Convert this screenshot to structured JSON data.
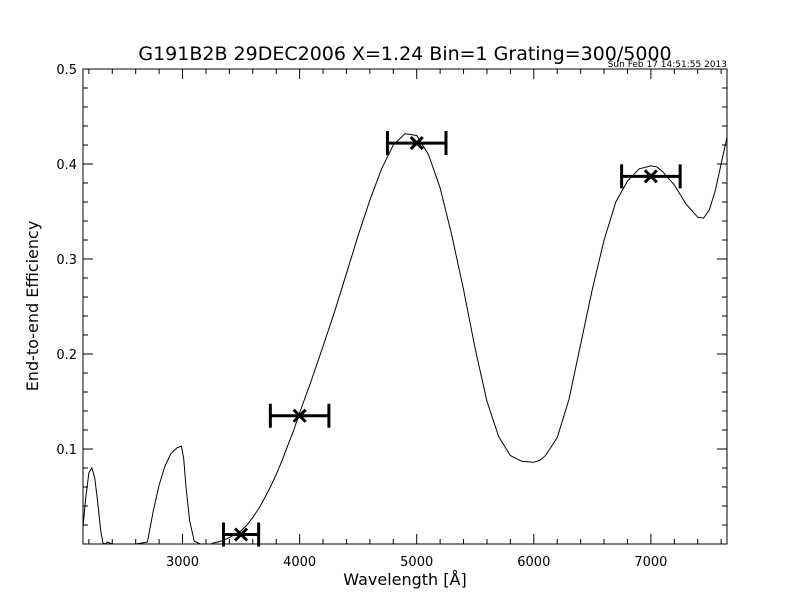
{
  "chart_data": {
    "type": "line",
    "title": "G191B2B 29DEC2006 X=1.24 Bin=1 Grating=300/5000",
    "timestamp": "Sun Feb 17 14:51:55 2013",
    "xlabel": "Wavelength [Å]",
    "ylabel": "End-to-end Efficiency",
    "xlim": [
      2150,
      7650
    ],
    "ylim": [
      0.0,
      0.5
    ],
    "xticks": [
      3000,
      4000,
      5000,
      6000,
      7000
    ],
    "xtick_labels": [
      "3000",
      "4000",
      "5000",
      "6000",
      "7000"
    ],
    "yticks": [
      0.1,
      0.2,
      0.3,
      0.4,
      0.5
    ],
    "ytick_labels": [
      "0.1",
      "0.2",
      "0.3",
      "0.4",
      "0.5"
    ],
    "grid": false,
    "series": [
      {
        "kind": "curve",
        "x": [
          2150,
          2175,
          2200,
          2225,
          2250,
          2275,
          2300,
          2320,
          2340,
          2360,
          2400,
          2500,
          2600,
          2700,
          2720,
          2750,
          2800,
          2850,
          2900,
          2950,
          2990,
          3010,
          3030,
          3060,
          3100,
          3150,
          3200,
          3250,
          3260,
          3300,
          3350,
          3400,
          3450,
          3500,
          3550,
          3600,
          3650,
          3700,
          3750,
          3800,
          3850,
          3900,
          3950,
          4000,
          4100,
          4200,
          4300,
          4400,
          4500,
          4600,
          4700,
          4800,
          4900,
          5000,
          5100,
          5200,
          5300,
          5400,
          5500,
          5600,
          5700,
          5800,
          5900,
          6000,
          6050,
          6100,
          6200,
          6300,
          6400,
          6500,
          6600,
          6700,
          6800,
          6900,
          7000,
          7050,
          7100,
          7200,
          7300,
          7400,
          7450,
          7500,
          7550,
          7600,
          7650
        ],
        "y": [
          0.018,
          0.05,
          0.075,
          0.08,
          0.07,
          0.045,
          0.015,
          0.001,
          0.0,
          0.002,
          0.0,
          0.0,
          0.0,
          0.002,
          0.015,
          0.035,
          0.062,
          0.082,
          0.095,
          0.101,
          0.103,
          0.09,
          0.06,
          0.025,
          0.003,
          0.0,
          0.0,
          0.0,
          0.001,
          0.002,
          0.004,
          0.007,
          0.01,
          0.014,
          0.02,
          0.028,
          0.037,
          0.048,
          0.06,
          0.073,
          0.088,
          0.104,
          0.12,
          0.138,
          0.172,
          0.208,
          0.245,
          0.285,
          0.325,
          0.362,
          0.395,
          0.42,
          0.432,
          0.43,
          0.41,
          0.375,
          0.325,
          0.268,
          0.205,
          0.15,
          0.113,
          0.093,
          0.087,
          0.086,
          0.088,
          0.093,
          0.112,
          0.152,
          0.21,
          0.268,
          0.32,
          0.36,
          0.382,
          0.395,
          0.398,
          0.397,
          0.392,
          0.378,
          0.358,
          0.344,
          0.343,
          0.352,
          0.372,
          0.4,
          0.428
        ]
      },
      {
        "kind": "binned-points",
        "points": [
          {
            "x": 3500,
            "y": 0.01,
            "xmin": 3350,
            "xmax": 3650
          },
          {
            "x": 4000,
            "y": 0.135,
            "xmin": 3750,
            "xmax": 4250
          },
          {
            "x": 5000,
            "y": 0.422,
            "xmin": 4750,
            "xmax": 5250
          },
          {
            "x": 7000,
            "y": 0.387,
            "xmin": 6750,
            "xmax": 7250
          }
        ]
      }
    ]
  }
}
